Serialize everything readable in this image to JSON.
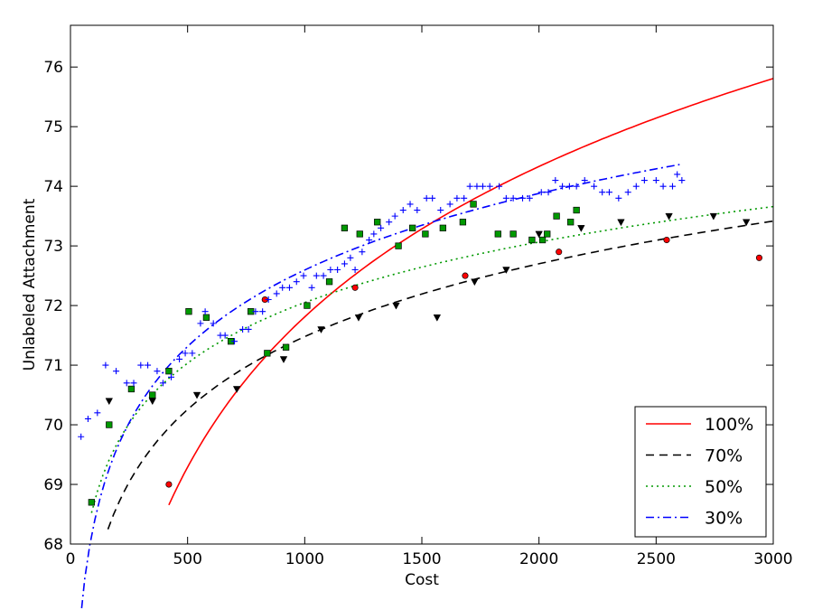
{
  "chart_data": {
    "type": "scatter",
    "title": "",
    "xlabel": "Cost",
    "ylabel": "Unlabeled Attachment",
    "xlim": [
      0,
      3000
    ],
    "ylim": [
      68,
      76.7
    ],
    "xticks": [
      0,
      500,
      1000,
      1500,
      2000,
      2500,
      3000
    ],
    "yticks": [
      68,
      69,
      70,
      71,
      72,
      73,
      74,
      75,
      76
    ],
    "legend_position": "bottom-right",
    "grid": false,
    "series": [
      {
        "name": "100%",
        "color": "#ff0000",
        "line_style": "solid",
        "marker": "circle",
        "points": [
          [
            420,
            69.0
          ],
          [
            830,
            72.1
          ],
          [
            1215,
            72.3
          ],
          [
            1685,
            72.5
          ],
          [
            2085,
            72.9
          ],
          [
            2545,
            73.1
          ],
          [
            2940,
            72.8
          ]
        ],
        "fit_x": [
          420,
          3000
        ],
        "fit": {
          "a": 46.68,
          "b": 3.638
        }
      },
      {
        "name": "70%",
        "color": "#000000",
        "line_style": "dashed",
        "marker": "triangle-down",
        "points": [
          [
            165,
            70.4
          ],
          [
            350,
            70.4
          ],
          [
            540,
            70.5
          ],
          [
            710,
            70.6
          ],
          [
            910,
            71.1
          ],
          [
            1070,
            71.6
          ],
          [
            1230,
            71.8
          ],
          [
            1390,
            72.0
          ],
          [
            1565,
            71.8
          ],
          [
            1725,
            72.4
          ],
          [
            1860,
            72.6
          ],
          [
            2000,
            73.2
          ],
          [
            2180,
            73.3
          ],
          [
            2350,
            73.4
          ],
          [
            2555,
            73.5
          ],
          [
            2745,
            73.5
          ],
          [
            2885,
            73.4
          ]
        ],
        "fit_x": [
          160,
          3000
        ],
        "fit": {
          "a": 59.3,
          "b": 1.763
        }
      },
      {
        "name": "50%",
        "color": "#009900",
        "line_style": "dotted",
        "marker": "square",
        "points": [
          [
            90,
            68.7
          ],
          [
            165,
            70.0
          ],
          [
            260,
            70.6
          ],
          [
            350,
            70.5
          ],
          [
            420,
            70.9
          ],
          [
            505,
            71.9
          ],
          [
            580,
            71.8
          ],
          [
            685,
            71.4
          ],
          [
            770,
            71.9
          ],
          [
            840,
            71.2
          ],
          [
            920,
            71.3
          ],
          [
            1010,
            72.0
          ],
          [
            1105,
            72.4
          ],
          [
            1170,
            73.3
          ],
          [
            1235,
            73.2
          ],
          [
            1310,
            73.4
          ],
          [
            1400,
            73.0
          ],
          [
            1460,
            73.3
          ],
          [
            1515,
            73.2
          ],
          [
            1590,
            73.3
          ],
          [
            1675,
            73.4
          ],
          [
            1720,
            73.7
          ],
          [
            1825,
            73.2
          ],
          [
            1890,
            73.2
          ],
          [
            1970,
            73.1
          ],
          [
            2015,
            73.1
          ],
          [
            2035,
            73.2
          ],
          [
            2075,
            73.5
          ],
          [
            2135,
            73.4
          ],
          [
            2160,
            73.6
          ]
        ],
        "fit_x": [
          90,
          3000
        ],
        "fit": {
          "a": 61.93,
          "b": 1.465
        }
      },
      {
        "name": "30%",
        "color": "#0000ff",
        "line_style": "dashdot",
        "marker": "plus",
        "points": [
          [
            45,
            69.8
          ],
          [
            75,
            70.1
          ],
          [
            115,
            70.2
          ],
          [
            150,
            71.0
          ],
          [
            195,
            70.9
          ],
          [
            240,
            70.7
          ],
          [
            270,
            70.7
          ],
          [
            300,
            71.0
          ],
          [
            330,
            71.0
          ],
          [
            370,
            70.9
          ],
          [
            395,
            70.7
          ],
          [
            430,
            70.8
          ],
          [
            465,
            71.1
          ],
          [
            490,
            71.2
          ],
          [
            520,
            71.2
          ],
          [
            555,
            71.7
          ],
          [
            575,
            71.9
          ],
          [
            610,
            71.7
          ],
          [
            640,
            71.5
          ],
          [
            660,
            71.5
          ],
          [
            700,
            71.4
          ],
          [
            735,
            71.6
          ],
          [
            760,
            71.6
          ],
          [
            790,
            71.9
          ],
          [
            820,
            71.9
          ],
          [
            845,
            72.1
          ],
          [
            880,
            72.2
          ],
          [
            905,
            72.3
          ],
          [
            935,
            72.3
          ],
          [
            965,
            72.4
          ],
          [
            995,
            72.5
          ],
          [
            1030,
            72.3
          ],
          [
            1050,
            72.5
          ],
          [
            1080,
            72.5
          ],
          [
            1110,
            72.6
          ],
          [
            1140,
            72.6
          ],
          [
            1170,
            72.7
          ],
          [
            1195,
            72.8
          ],
          [
            1215,
            72.6
          ],
          [
            1245,
            72.9
          ],
          [
            1275,
            73.1
          ],
          [
            1295,
            73.2
          ],
          [
            1325,
            73.3
          ],
          [
            1360,
            73.4
          ],
          [
            1385,
            73.5
          ],
          [
            1420,
            73.6
          ],
          [
            1450,
            73.7
          ],
          [
            1480,
            73.6
          ],
          [
            1520,
            73.8
          ],
          [
            1545,
            73.8
          ],
          [
            1580,
            73.6
          ],
          [
            1620,
            73.7
          ],
          [
            1650,
            73.8
          ],
          [
            1680,
            73.8
          ],
          [
            1705,
            74.0
          ],
          [
            1735,
            74.0
          ],
          [
            1760,
            74.0
          ],
          [
            1790,
            74.0
          ],
          [
            1830,
            74.0
          ],
          [
            1860,
            73.8
          ],
          [
            1890,
            73.8
          ],
          [
            1930,
            73.8
          ],
          [
            1960,
            73.8
          ],
          [
            2010,
            73.9
          ],
          [
            2040,
            73.9
          ],
          [
            2070,
            74.1
          ],
          [
            2100,
            74.0
          ],
          [
            2130,
            74.0
          ],
          [
            2160,
            74.0
          ],
          [
            2195,
            74.1
          ],
          [
            2235,
            74.0
          ],
          [
            2270,
            73.9
          ],
          [
            2300,
            73.9
          ],
          [
            2340,
            73.8
          ],
          [
            2380,
            73.9
          ],
          [
            2415,
            74.0
          ],
          [
            2450,
            74.1
          ],
          [
            2500,
            74.1
          ],
          [
            2530,
            74.0
          ],
          [
            2570,
            74.0
          ],
          [
            2590,
            74.2
          ],
          [
            2610,
            74.1
          ]
        ],
        "fit_x": [
          40,
          2600
        ],
        "fit": {
          "a": 59.81,
          "b": 1.851
        }
      }
    ]
  }
}
